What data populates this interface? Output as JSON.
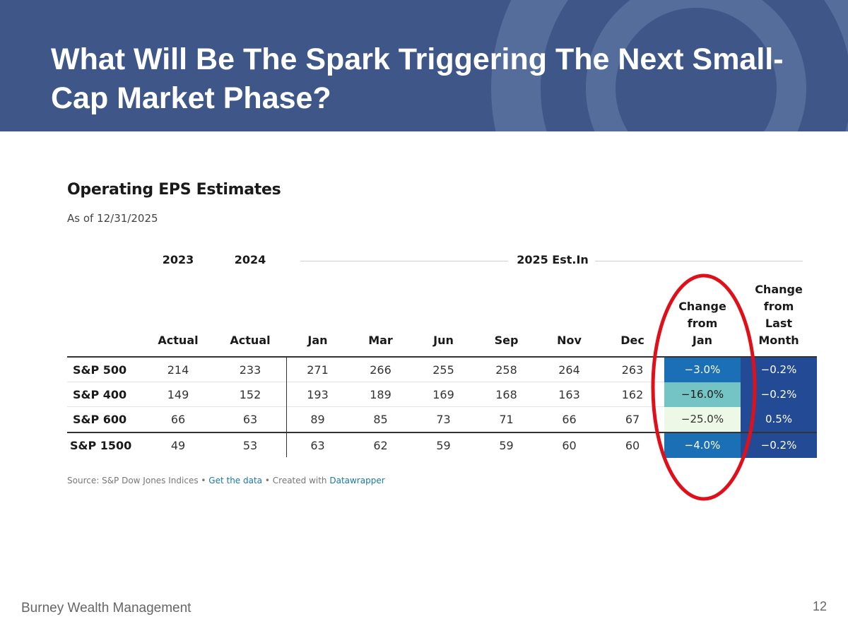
{
  "slide": {
    "title": "What Will Be The Spark Triggering The Next Small-Cap Market Phase?",
    "footer": "Burney Wealth Management",
    "page_number": "12",
    "banner_color": "#3e5688"
  },
  "table": {
    "title": "Operating EPS Estimates",
    "subtitle": "As of 12/31/2025",
    "group_headers": [
      "2023",
      "2024",
      "2025 Est.In"
    ],
    "columns": [
      "Actual",
      "Actual",
      "Jan",
      "Mar",
      "Jun",
      "Sep",
      "Nov",
      "Dec",
      "Change\nfrom\nJan",
      "Change\nfrom\nLast\nMonth"
    ],
    "rows": [
      {
        "name": "S&P 500",
        "values": [
          "214",
          "233",
          "271",
          "266",
          "255",
          "258",
          "264",
          "263"
        ],
        "change_jan": "−3.0%",
        "change_month": "−0.2%"
      },
      {
        "name": "S&P 400",
        "values": [
          "149",
          "152",
          "193",
          "189",
          "169",
          "168",
          "163",
          "162"
        ],
        "change_jan": "−16.0%",
        "change_month": "−0.2%"
      },
      {
        "name": "S&P 600",
        "values": [
          "66",
          "63",
          "89",
          "85",
          "73",
          "71",
          "66",
          "67"
        ],
        "change_jan": "−25.0%",
        "change_month": "0.5%"
      },
      {
        "name": "S&P 1500",
        "values": [
          "49",
          "53",
          "63",
          "62",
          "59",
          "59",
          "60",
          "60"
        ],
        "change_jan": "−4.0%",
        "change_month": "−0.2%"
      }
    ],
    "heatmap_colors": {
      "change_jan": [
        "#1a6fb5",
        "#74c3c5",
        "#eef8e6",
        "#1a6fb5"
      ],
      "change_month": [
        "#234a94",
        "#234a94",
        "#234a94",
        "#234a94"
      ]
    },
    "annotation_color": "#e0101a"
  },
  "source": {
    "text": "Source: S&P Dow Jones Indices",
    "bullet1": " • ",
    "link1": "Get the data",
    "bullet2": " • ",
    "created": "Created with ",
    "link2": "Datawrapper"
  }
}
